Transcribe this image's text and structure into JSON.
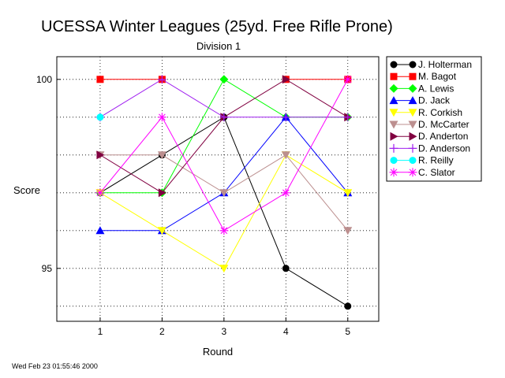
{
  "chart_data": {
    "type": "line",
    "title": "UCESSA Winter Leagues (25yd. Free Rifle Prone)",
    "subtitle": "Division 1",
    "xlabel": "Round",
    "ylabel": "Score",
    "x": [
      1,
      2,
      3,
      4,
      5
    ],
    "x_ticks": [
      "1",
      "2",
      "3",
      "4",
      "5"
    ],
    "y_ticks": [
      "100",
      "95"
    ],
    "xlim": [
      0.3,
      5.5
    ],
    "ylim": [
      93.6,
      100.6
    ],
    "grid": true,
    "legend_position": "right",
    "series": [
      {
        "name": "J. Holterman",
        "color": "#000000",
        "marker": "circle",
        "values": [
          97,
          98,
          99,
          95,
          94
        ]
      },
      {
        "name": "M. Bagot",
        "color": "#ff0000",
        "marker": "square",
        "values": [
          100,
          100,
          null,
          100,
          100
        ]
      },
      {
        "name": "A. Lewis",
        "color": "#00ff00",
        "marker": "diamond",
        "values": [
          97,
          97,
          100,
          99,
          99
        ]
      },
      {
        "name": "D. Jack",
        "color": "#0000ff",
        "marker": "triangle",
        "values": [
          96,
          96,
          97,
          99,
          97
        ]
      },
      {
        "name": "R. Corkish",
        "color": "#ffff00",
        "marker": "invtriangle",
        "values": [
          97,
          96,
          95,
          98,
          97
        ]
      },
      {
        "name": "D. McCarter",
        "color": "#bc8f8f",
        "marker": "invtriangle",
        "values": [
          98,
          98,
          97,
          98,
          96
        ]
      },
      {
        "name": "D. Anderton",
        "color": "#800040",
        "marker": "righttriangle",
        "values": [
          98,
          97,
          99,
          100,
          99
        ]
      },
      {
        "name": "D. Anderson",
        "color": "#a020f0",
        "marker": "plus",
        "values": [
          99,
          100,
          99,
          99,
          99
        ]
      },
      {
        "name": "R. Reilly",
        "color": "#00ffff",
        "marker": "circle",
        "values": [
          99,
          null,
          null,
          null,
          null
        ]
      },
      {
        "name": "C. Slator",
        "color": "#ff00ff",
        "marker": "asterisk",
        "values": [
          97,
          99,
          96,
          97,
          100
        ]
      }
    ]
  },
  "timestamp": "Wed Feb 23 01:55:46 2000"
}
